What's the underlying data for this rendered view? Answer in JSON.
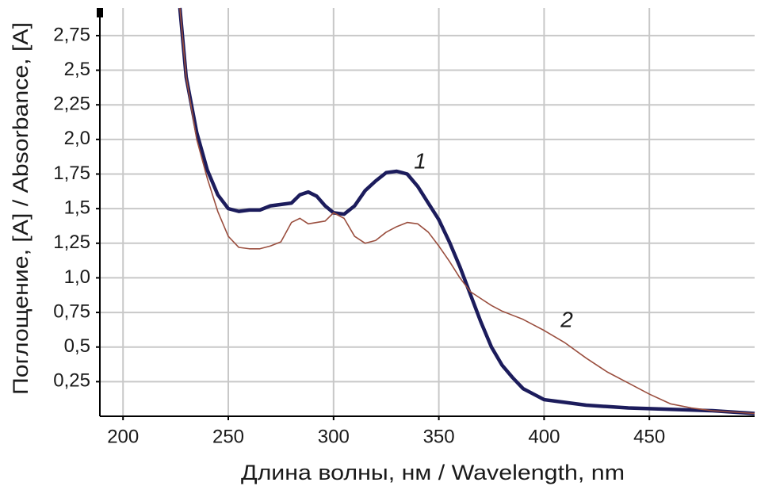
{
  "chart_data": {
    "type": "line",
    "x_label": "Длина волны, нм / Wavelength, nm",
    "y_label": "Поглощение, [A] / Absorbance, [A]",
    "x": [
      227,
      230,
      235,
      240,
      245,
      250,
      255,
      260,
      265,
      270,
      275,
      280,
      284,
      288,
      292,
      296,
      300,
      305,
      310,
      315,
      320,
      325,
      330,
      335,
      340,
      345,
      350,
      355,
      360,
      365,
      370,
      375,
      380,
      385,
      390,
      395,
      400,
      410,
      420,
      430,
      440,
      450,
      460,
      470,
      480,
      490,
      500
    ],
    "series": [
      {
        "name": "1",
        "color": "#1c1c5c",
        "values": [
          2.95,
          2.45,
          2.05,
          1.78,
          1.6,
          1.5,
          1.48,
          1.49,
          1.49,
          1.52,
          1.53,
          1.54,
          1.6,
          1.62,
          1.59,
          1.52,
          1.47,
          1.46,
          1.52,
          1.63,
          1.7,
          1.76,
          1.77,
          1.75,
          1.66,
          1.54,
          1.42,
          1.26,
          1.08,
          0.88,
          0.68,
          0.5,
          0.37,
          0.28,
          0.2,
          0.16,
          0.12,
          0.1,
          0.08,
          0.07,
          0.06,
          0.055,
          0.05,
          0.045,
          0.04,
          0.03,
          0.02
        ]
      },
      {
        "name": "2",
        "color": "#9a4e3e",
        "values": [
          2.95,
          2.45,
          2.0,
          1.72,
          1.48,
          1.3,
          1.22,
          1.21,
          1.21,
          1.23,
          1.26,
          1.4,
          1.43,
          1.39,
          1.4,
          1.41,
          1.47,
          1.43,
          1.3,
          1.25,
          1.27,
          1.33,
          1.37,
          1.4,
          1.39,
          1.33,
          1.23,
          1.12,
          1.0,
          0.9,
          0.85,
          0.8,
          0.76,
          0.73,
          0.7,
          0.66,
          0.62,
          0.53,
          0.42,
          0.32,
          0.24,
          0.16,
          0.09,
          0.06,
          0.04,
          0.03,
          0.02
        ]
      }
    ],
    "xlim": [
      189,
      500
    ],
    "xticks": [
      200,
      250,
      300,
      350,
      400,
      450
    ],
    "ylim": [
      0,
      2.95
    ],
    "yticks": [
      {
        "value": 0.25,
        "label": "0,25"
      },
      {
        "value": 0.5,
        "label": "0,5"
      },
      {
        "value": 0.75,
        "label": "0,75"
      },
      {
        "value": 1.0,
        "label": "1,0"
      },
      {
        "value": 1.25,
        "label": "1,25"
      },
      {
        "value": 1.5,
        "label": "1,5"
      },
      {
        "value": 1.75,
        "label": "1,75"
      },
      {
        "value": 2.0,
        "label": "2,0"
      },
      {
        "value": 2.25,
        "label": "2,25"
      },
      {
        "value": 2.5,
        "label": "2,5"
      },
      {
        "value": 2.75,
        "label": "2,75"
      }
    ],
    "grid": true
  }
}
